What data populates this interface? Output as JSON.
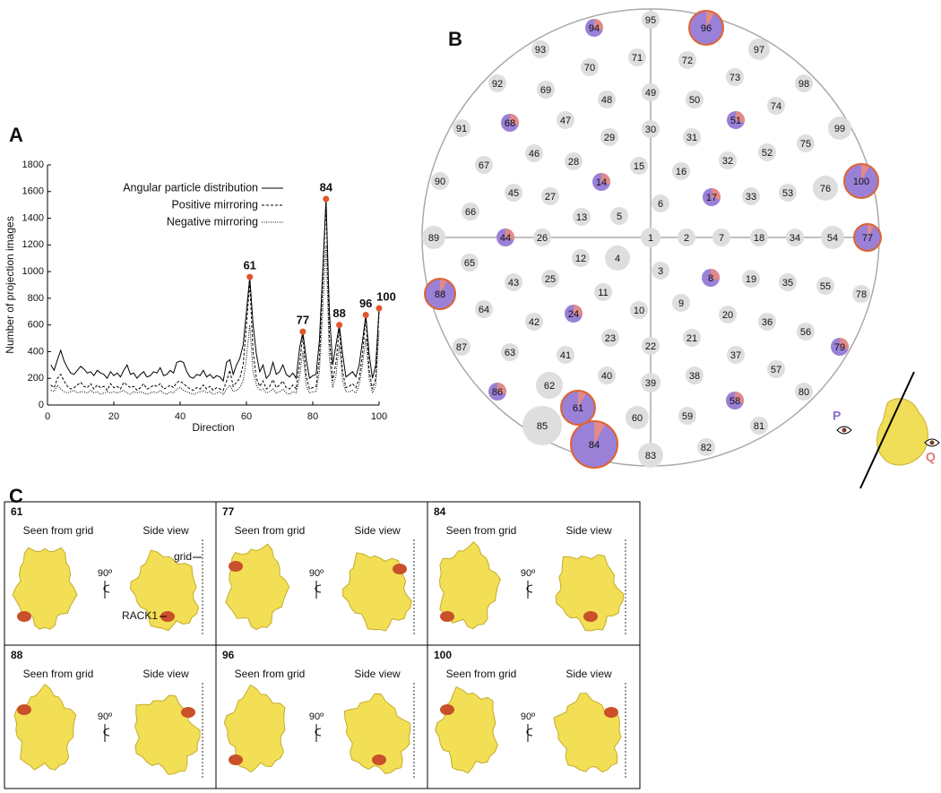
{
  "chart_data": {
    "type": "line",
    "panel": "A",
    "xlabel": "Direction",
    "ylabel": "Number of projection images",
    "xlim": [
      0,
      100
    ],
    "ylim": [
      0,
      1800
    ],
    "xticks": [
      0,
      20,
      40,
      60,
      80,
      100
    ],
    "yticks": [
      0,
      200,
      400,
      600,
      800,
      1000,
      1200,
      1400,
      1600,
      1800
    ],
    "x": [
      1,
      2,
      3,
      4,
      5,
      6,
      7,
      8,
      9,
      10,
      11,
      12,
      13,
      14,
      15,
      16,
      17,
      18,
      19,
      20,
      21,
      22,
      23,
      24,
      25,
      26,
      27,
      28,
      29,
      30,
      31,
      32,
      33,
      34,
      35,
      36,
      37,
      38,
      39,
      40,
      41,
      42,
      43,
      44,
      45,
      46,
      47,
      48,
      49,
      50,
      51,
      52,
      53,
      54,
      55,
      56,
      57,
      58,
      59,
      60,
      61,
      62,
      63,
      64,
      65,
      66,
      67,
      68,
      69,
      70,
      71,
      72,
      73,
      74,
      75,
      76,
      77,
      78,
      79,
      80,
      81,
      82,
      83,
      84,
      85,
      86,
      87,
      88,
      89,
      90,
      91,
      92,
      93,
      94,
      95,
      96,
      97,
      98,
      99,
      100
    ],
    "series": [
      {
        "name": "Angular particle distribution",
        "color": "#000000",
        "style": "solid",
        "values": [
          300,
          260,
          340,
          410,
          330,
          280,
          240,
          230,
          260,
          290,
          270,
          240,
          250,
          220,
          260,
          240,
          230,
          200,
          250,
          220,
          240,
          210,
          260,
          300,
          230,
          240,
          200,
          230,
          250,
          210,
          220,
          250,
          240,
          280,
          220,
          230,
          260,
          240,
          320,
          330,
          320,
          250,
          210,
          200,
          230,
          220,
          260,
          210,
          230,
          200,
          220,
          210,
          180,
          320,
          340,
          230,
          300,
          350,
          450,
          700,
          960,
          600,
          380,
          250,
          300,
          200,
          230,
          320,
          230,
          250,
          300,
          230,
          210,
          240,
          200,
          420,
          550,
          350,
          200,
          220,
          230,
          480,
          1000,
          1545,
          700,
          300,
          450,
          600,
          380,
          210,
          230,
          250,
          210,
          300,
          480,
          675,
          380,
          200,
          300,
          725
        ]
      },
      {
        "name": "Positive mirroring",
        "color": "#000000",
        "style": "dashed",
        "values": [
          150,
          130,
          200,
          230,
          180,
          140,
          120,
          130,
          150,
          170,
          140,
          130,
          160,
          120,
          150,
          130,
          140,
          110,
          160,
          130,
          140,
          120,
          170,
          150,
          130,
          140,
          110,
          130,
          160,
          120,
          130,
          150,
          140,
          160,
          120,
          130,
          150,
          130,
          170,
          180,
          160,
          140,
          120,
          110,
          130,
          120,
          150,
          120,
          140,
          110,
          130,
          120,
          110,
          180,
          260,
          140,
          170,
          200,
          300,
          600,
          920,
          400,
          200,
          140,
          180,
          120,
          140,
          190,
          130,
          150,
          180,
          130,
          120,
          150,
          120,
          300,
          520,
          220,
          120,
          130,
          140,
          350,
          900,
          1520,
          500,
          180,
          320,
          570,
          250,
          130,
          140,
          160,
          130,
          200,
          380,
          660,
          260,
          120,
          200,
          700
        ]
      },
      {
        "name": "Negative mirroring",
        "color": "#000000",
        "style": "dotted",
        "values": [
          110,
          100,
          150,
          120,
          100,
          90,
          100,
          110,
          90,
          100,
          100,
          90,
          110,
          90,
          100,
          80,
          90,
          100,
          90,
          100,
          90,
          100,
          110,
          90,
          80,
          100,
          90,
          100,
          90,
          80,
          90,
          100,
          90,
          110,
          90,
          80,
          100,
          90,
          120,
          130,
          110,
          100,
          90,
          80,
          90,
          100,
          110,
          90,
          100,
          80,
          90,
          100,
          80,
          120,
          150,
          100,
          110,
          130,
          180,
          350,
          600,
          250,
          150,
          110,
          120,
          90,
          100,
          120,
          90,
          100,
          120,
          90,
          80,
          100,
          90,
          200,
          400,
          150,
          90,
          100,
          100,
          250,
          700,
          1200,
          350,
          130,
          220,
          450,
          180,
          100,
          100,
          110,
          90,
          150,
          300,
          500,
          200,
          90,
          150,
          550
        ]
      }
    ],
    "annotations": [
      {
        "x": 61,
        "y": 960,
        "label": "61"
      },
      {
        "x": 77,
        "y": 550,
        "label": "77"
      },
      {
        "x": 84,
        "y": 1545,
        "label": "84"
      },
      {
        "x": 88,
        "y": 600,
        "label": "88"
      },
      {
        "x": 96,
        "y": 675,
        "label": "96"
      },
      {
        "x": 100,
        "y": 725,
        "label": "100"
      }
    ],
    "annotation_color": "#e0572a"
  },
  "panel_b": {
    "label": "B",
    "directions": [
      "1",
      "2",
      "3",
      "4",
      "5",
      "6",
      "7",
      "8",
      "9",
      "10",
      "11",
      "12",
      "13",
      "14",
      "15",
      "16",
      "17",
      "18",
      "19",
      "20",
      "21",
      "22",
      "23",
      "24",
      "25",
      "26",
      "27",
      "28",
      "29",
      "30",
      "31",
      "32",
      "33",
      "34",
      "35",
      "36",
      "37",
      "38",
      "39",
      "40",
      "41",
      "42",
      "43",
      "44",
      "45",
      "46",
      "47",
      "48",
      "49",
      "50",
      "51",
      "52",
      "53",
      "54",
      "55",
      "56",
      "57",
      "58",
      "59",
      "60",
      "61",
      "62",
      "63",
      "64",
      "65",
      "66",
      "67",
      "68",
      "69",
      "70",
      "71",
      "72",
      "73",
      "74",
      "75",
      "76",
      "77",
      "78",
      "79",
      "80",
      "81",
      "82",
      "83",
      "84",
      "85",
      "86",
      "87",
      "88",
      "89",
      "90",
      "91",
      "92",
      "93",
      "94",
      "95",
      "96",
      "97",
      "98",
      "99",
      "100"
    ],
    "view_p": "P",
    "view_q": "Q"
  },
  "panel_c": {
    "label": "C",
    "grid_note": "grid",
    "rack_note": "RACK1",
    "tiles": [
      {
        "id": "61",
        "left": "Seen from grid",
        "right": "Side view",
        "angle": "90º"
      },
      {
        "id": "77",
        "left": "Seen from grid",
        "right": "Side view",
        "angle": "90º"
      },
      {
        "id": "84",
        "left": "Seen from grid",
        "right": "Side view",
        "angle": "90º"
      },
      {
        "id": "88",
        "left": "Seen from grid",
        "right": "Side view",
        "angle": "90º"
      },
      {
        "id": "96",
        "left": "Seen from grid",
        "right": "Side view",
        "angle": "90º"
      },
      {
        "id": "100",
        "left": "Seen from grid",
        "right": "Side view",
        "angle": "90º"
      }
    ]
  }
}
